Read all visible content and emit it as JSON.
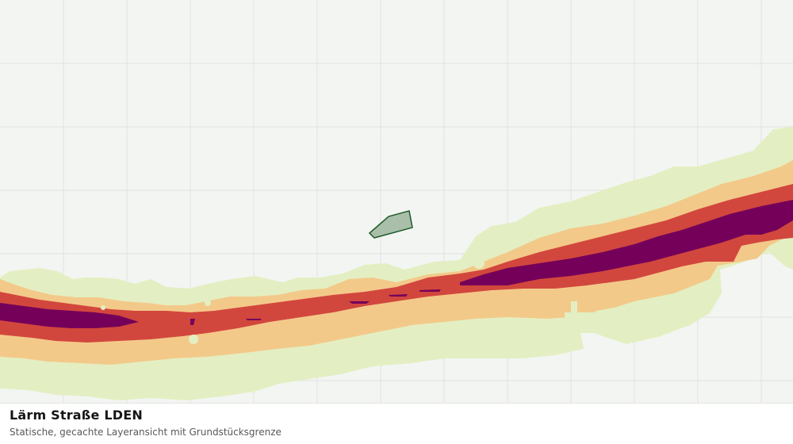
{
  "map": {
    "title": "Lärm Straße LDEN",
    "subtitle": "Statische, gecachte Layeransicht mit Grundstücksgrenze",
    "colors": {
      "background": "#f3f5f2",
      "grid": "#dfe2de",
      "noise_band_1": "#e3efc2",
      "noise_band_2": "#f3c98a",
      "noise_band_3": "#d2473d",
      "noise_band_4": "#74005a",
      "parcel_fill": "#a9bfa9",
      "parcel_stroke": "#1f5a2a"
    }
  }
}
